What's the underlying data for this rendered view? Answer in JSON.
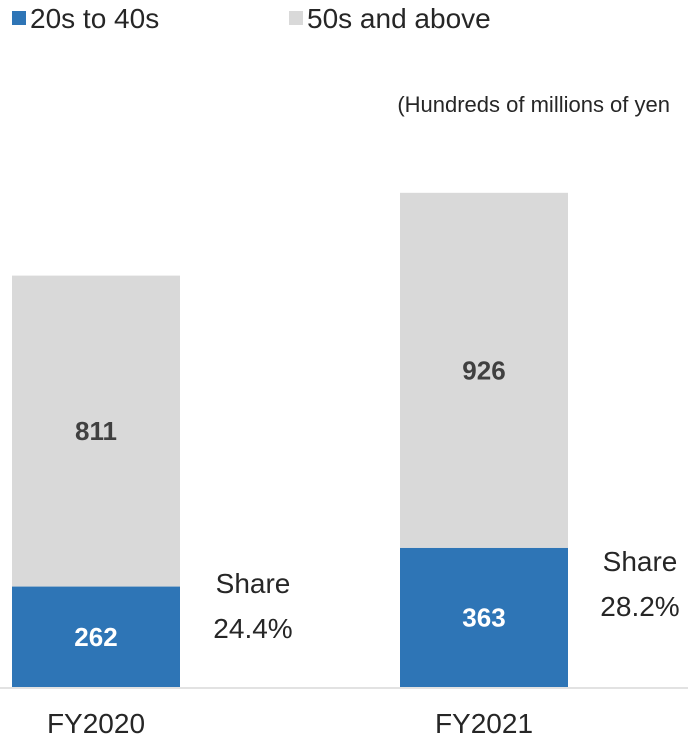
{
  "chart_data": {
    "type": "bar",
    "stacked": true,
    "unit_label": "(Hundreds of millions of yen",
    "categories": [
      "FY2020",
      "FY2021"
    ],
    "series": [
      {
        "name": "20s to 40s",
        "color": "#2e75b6",
        "values": [
          262,
          363
        ]
      },
      {
        "name": "50s and above",
        "color": "#d9d9d9",
        "values": [
          811,
          926
        ]
      }
    ],
    "annotations": [
      {
        "category": "FY2020",
        "line1": "Share",
        "line2": "24.4%"
      },
      {
        "category": "FY2021",
        "line1": "Share",
        "line2": "28.2%"
      }
    ],
    "legend_position": "top-left",
    "grid": false,
    "value_label_colors": {
      "inside_dark": "#ffffff",
      "inside_light": "#404040"
    }
  }
}
